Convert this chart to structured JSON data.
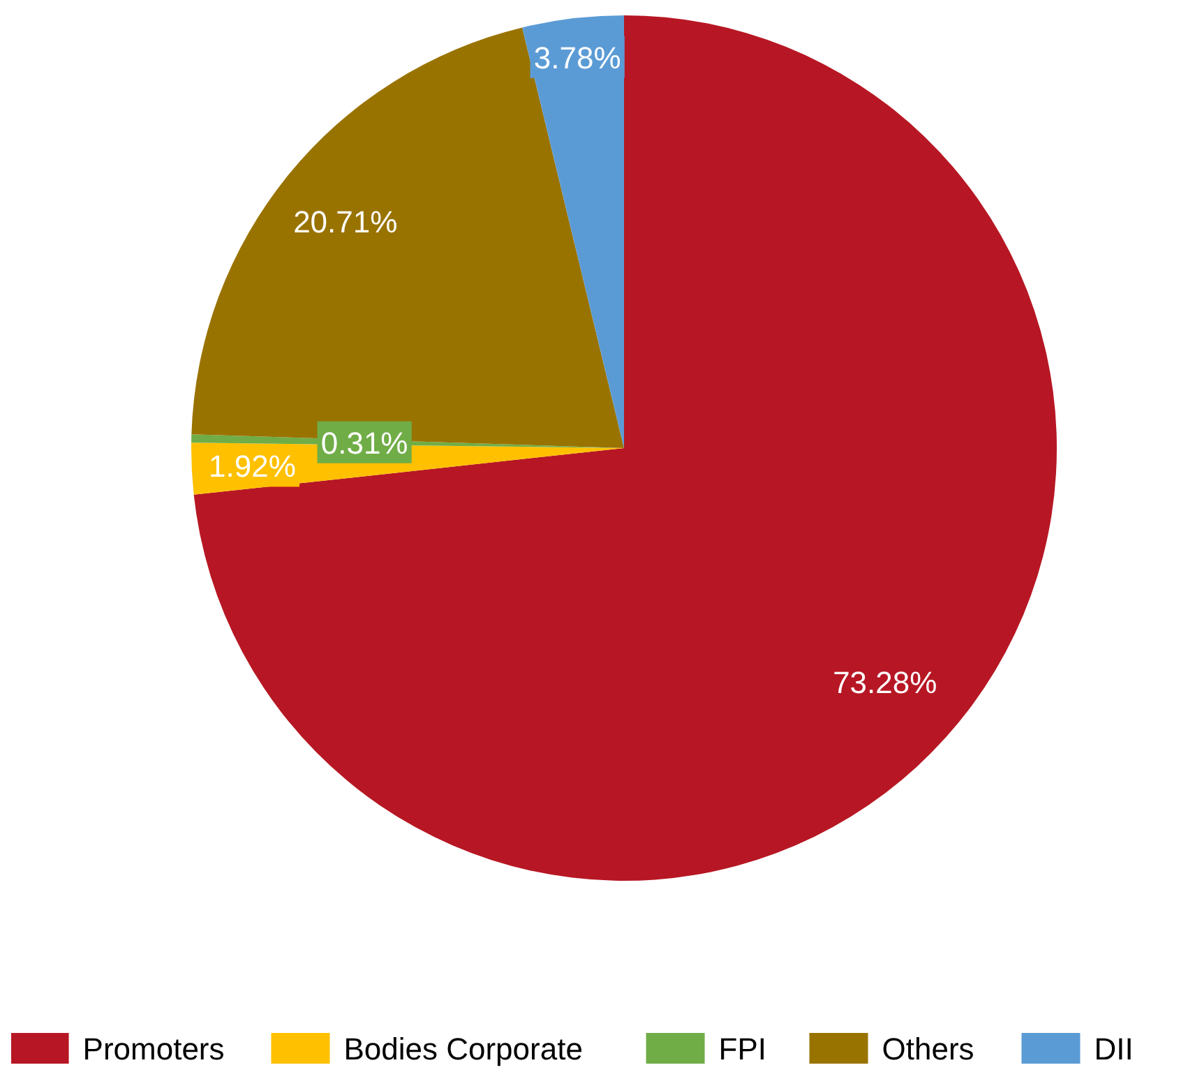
{
  "chart_data": {
    "type": "pie",
    "categories": [
      "Promoters",
      "Bodies Corporate",
      "FPI",
      "Others",
      "DII"
    ],
    "values": [
      73.28,
      1.92,
      0.31,
      20.71,
      3.78
    ],
    "colors": [
      "#b71724",
      "#ffc000",
      "#70ad47",
      "#997300",
      "#5b9bd5"
    ],
    "value_labels": [
      "73.28%",
      "1.92%",
      "0.31%",
      "20.71%",
      "3.78%"
    ],
    "legend": "bottom"
  }
}
